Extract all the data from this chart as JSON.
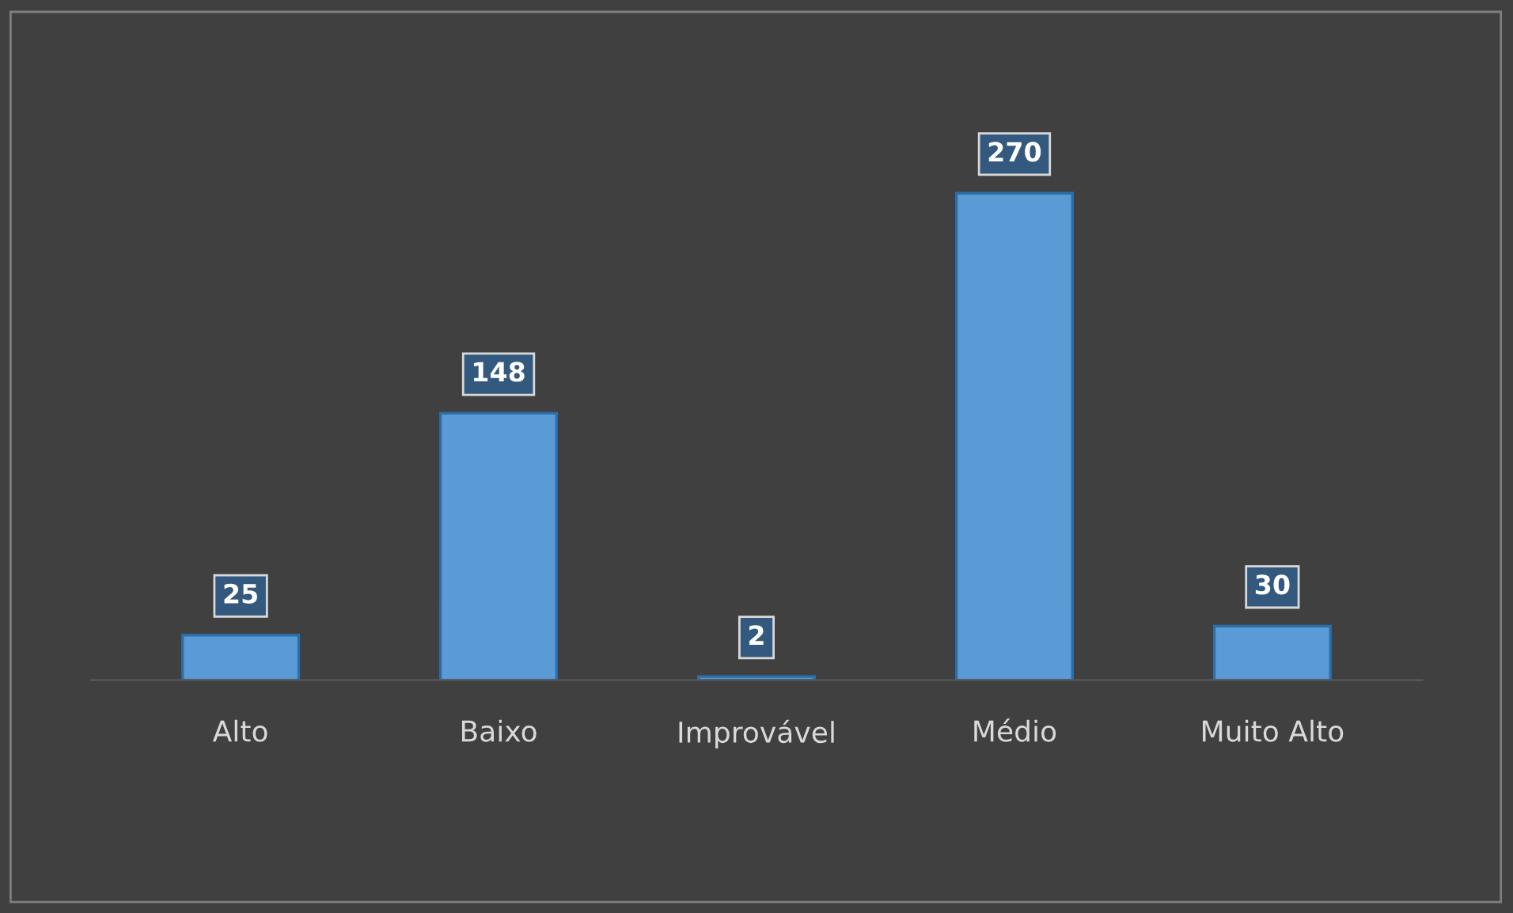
{
  "chart_data": {
    "type": "bar",
    "categories": [
      "Alto",
      "Baixo",
      "Improvável",
      "Médio",
      "Muito Alto"
    ],
    "values": [
      25,
      148,
      2,
      270,
      30
    ],
    "color": "#5b9bd5",
    "data_labels": true,
    "grid": false,
    "legend": false,
    "tick_labels": "x"
  }
}
